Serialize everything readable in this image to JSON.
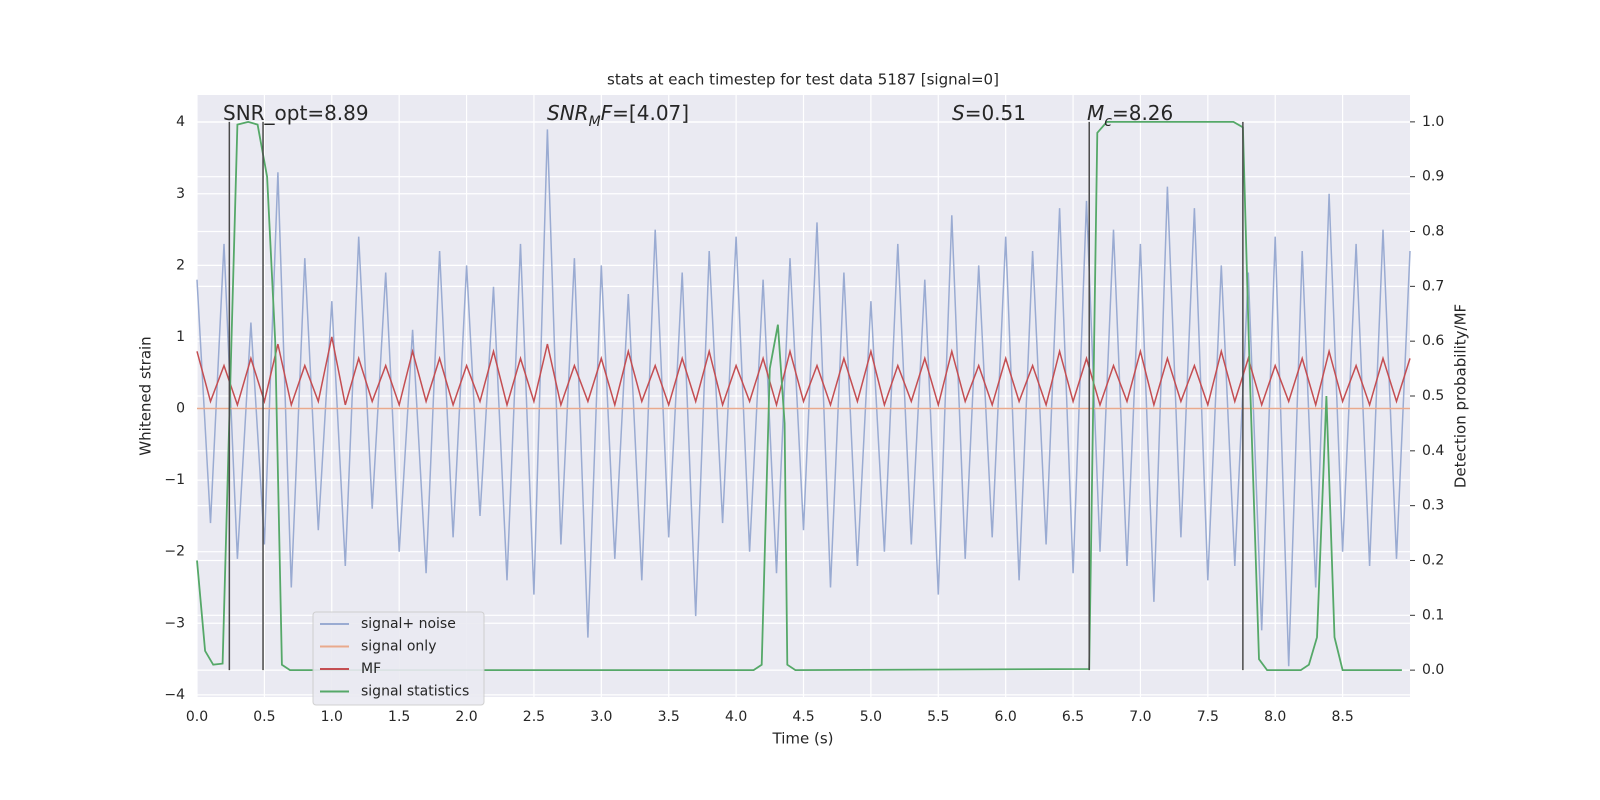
{
  "chart_data": {
    "type": "line",
    "title": "stats at each timestep for test data 5187 [signal=0]",
    "x_label": "Time (s)",
    "y_label": "Whitened strain",
    "y2_label": "Detection probability/MF",
    "xlim": [
      0,
      9.0
    ],
    "ylim": [
      -4.03,
      4.38
    ],
    "y2lim": [
      -0.049,
      1.049
    ],
    "xticks": [
      {
        "value": 0,
        "label": "0.0"
      },
      0.5,
      {
        "value": 1,
        "label": "1.0"
      },
      1.5,
      {
        "value": 2,
        "label": "2.0"
      },
      2.5,
      {
        "value": 3,
        "label": "3.0"
      },
      3.5,
      {
        "value": 4,
        "label": "4.0"
      },
      4.5,
      {
        "value": 5,
        "label": "5.0"
      },
      5.5,
      {
        "value": 6,
        "label": "6.0"
      },
      6.5,
      {
        "value": 7,
        "label": "7.0"
      },
      7.5,
      {
        "value": 8,
        "label": "8.0"
      },
      8.5
    ],
    "yticks": [
      {
        "value": -4,
        "label": "−4"
      },
      {
        "value": -3,
        "label": "−3"
      },
      {
        "value": -2,
        "label": "−2"
      },
      {
        "value": -1,
        "label": "−1"
      },
      0,
      1,
      2,
      3,
      4
    ],
    "y2ticks": [
      {
        "value": 0,
        "label": "0.0"
      },
      0.1,
      0.2,
      0.3,
      0.4,
      0.5,
      0.6,
      0.7,
      0.8,
      0.9,
      {
        "value": 1,
        "label": "1.0"
      }
    ],
    "grid": true,
    "legend_loc": "lower left",
    "x": [
      0,
      0.1,
      0.2,
      0.3,
      0.4,
      0.5,
      0.6,
      0.7,
      0.8,
      0.9,
      1.0,
      1.1,
      1.2,
      1.3,
      1.4,
      1.5,
      1.6,
      1.7,
      1.8,
      1.9,
      2.0,
      2.1,
      2.2,
      2.3,
      2.4,
      2.5,
      2.6,
      2.7,
      2.8,
      2.9,
      3.0,
      3.1,
      3.2,
      3.3,
      3.4,
      3.5,
      3.6,
      3.7,
      3.8,
      3.9,
      4.0,
      4.1,
      4.2,
      4.3,
      4.4,
      4.5,
      4.6,
      4.7,
      4.8,
      4.9,
      5.0,
      5.1,
      5.2,
      5.3,
      5.4,
      5.5,
      5.6,
      5.7,
      5.8,
      5.9,
      6.0,
      6.1,
      6.2,
      6.3,
      6.4,
      6.5,
      6.6,
      6.7,
      6.8,
      6.9,
      7.0,
      7.1,
      7.2,
      7.3,
      7.4,
      7.5,
      7.6,
      7.7,
      7.8,
      7.9,
      8.0,
      8.1,
      8.2,
      8.3,
      8.4,
      8.5,
      8.6,
      8.7,
      8.8,
      8.9,
      9.0
    ],
    "series": [
      {
        "name": "signal+ noise",
        "color": "#9aabd2",
        "values": [
          1.8,
          -1.6,
          2.3,
          -2.1,
          1.2,
          -1.9,
          3.3,
          -2.5,
          2.1,
          -1.7,
          1.5,
          -2.2,
          2.4,
          -1.4,
          1.9,
          -2.0,
          1.1,
          -2.3,
          2.2,
          -1.8,
          2.0,
          -1.5,
          1.7,
          -2.4,
          2.3,
          -2.6,
          3.9,
          -1.9,
          2.1,
          -3.2,
          2.0,
          -2.1,
          1.6,
          -2.4,
          2.5,
          -1.8,
          1.9,
          -2.9,
          2.2,
          -1.6,
          2.4,
          -2.0,
          1.8,
          -2.3,
          2.1,
          -1.7,
          2.6,
          -2.5,
          1.9,
          -2.2,
          1.5,
          -2.0,
          2.3,
          -1.9,
          1.8,
          -2.6,
          2.7,
          -2.1,
          2.0,
          -1.8,
          2.4,
          -2.4,
          2.2,
          -1.9,
          2.8,
          -2.3,
          2.9,
          -2.0,
          2.5,
          -2.2,
          2.3,
          -2.7,
          3.1,
          -1.8,
          2.8,
          -2.4,
          2.0,
          -2.2,
          1.9,
          -3.1,
          2.4,
          -3.6,
          2.2,
          -2.5,
          3.0,
          -2.0,
          2.3,
          -2.2,
          2.5,
          -2.1,
          2.2
        ]
      },
      {
        "name": "signal only",
        "color": "#e9a98c",
        "x": [
          0,
          9.0
        ],
        "values": [
          0,
          0
        ]
      },
      {
        "name": "MF",
        "color": "#c44e52",
        "values": [
          0.8,
          0.1,
          0.6,
          0.05,
          0.7,
          0.1,
          0.9,
          0.05,
          0.6,
          0.1,
          1.0,
          0.05,
          0.7,
          0.1,
          0.6,
          0.05,
          0.8,
          0.1,
          0.7,
          0.05,
          0.6,
          0.1,
          0.8,
          0.05,
          0.7,
          0.1,
          0.9,
          0.05,
          0.6,
          0.1,
          0.7,
          0.05,
          0.8,
          0.1,
          0.6,
          0.05,
          0.7,
          0.1,
          0.8,
          0.05,
          0.6,
          0.1,
          0.7,
          0.05,
          0.8,
          0.1,
          0.6,
          0.05,
          0.7,
          0.1,
          0.8,
          0.05,
          0.6,
          0.1,
          0.7,
          0.05,
          0.8,
          0.1,
          0.6,
          0.05,
          0.7,
          0.1,
          0.6,
          0.05,
          0.8,
          0.1,
          0.7,
          0.05,
          0.6,
          0.1,
          0.8,
          0.05,
          0.7,
          0.1,
          0.6,
          0.05,
          0.8,
          0.1,
          0.7,
          0.05,
          0.6,
          0.1,
          0.7,
          0.05,
          0.8,
          0.1,
          0.6,
          0.05,
          0.7,
          0.1,
          0.7
        ]
      },
      {
        "name": "signal statistics",
        "color": "#55a868",
        "axis": "y2",
        "x": [
          0,
          0.06,
          0.12,
          0.19,
          0.3,
          0.38,
          0.45,
          0.52,
          0.58,
          0.63,
          0.69,
          4.13,
          4.19,
          4.25,
          4.31,
          4.36,
          4.38,
          4.44,
          6.62,
          6.68,
          6.75,
          7.69,
          7.76,
          7.81,
          7.88,
          7.94,
          8.19,
          8.25,
          8.31,
          8.38,
          8.44,
          8.5,
          8.94
        ],
        "values": [
          0.2,
          0.035,
          0.01,
          0.012,
          0.995,
          1.0,
          0.995,
          0.9,
          0.6,
          0.01,
          0,
          0,
          0.01,
          0.55,
          0.63,
          0.45,
          0.01,
          0,
          0.002,
          0.98,
          1.0,
          1.0,
          0.99,
          0.55,
          0.02,
          0,
          0,
          0.01,
          0.06,
          0.5,
          0.06,
          0,
          0
        ]
      }
    ],
    "vlines": [
      0.24,
      0.49,
      6.62,
      7.76
    ],
    "vline_span": [
      0,
      1
    ],
    "vline_color": "#4a4a4a",
    "annotations": [
      {
        "parts": [
          {
            "text": "SNR_opt=8.89"
          }
        ]
      },
      {
        "parts": [
          {
            "text": "SNR",
            "italic": true
          },
          {
            "text": "M",
            "italic": true,
            "sub": true
          },
          {
            "text": "F",
            "italic": true
          },
          {
            "text": "=[4.07]"
          }
        ]
      },
      {
        "parts": [
          {
            "text": "S",
            "italic": true
          },
          {
            "text": "=0.51"
          }
        ]
      },
      {
        "parts": [
          {
            "text": "M",
            "italic": true
          },
          {
            "text": "c",
            "italic": true,
            "sub": true
          },
          {
            "text": "=8.26"
          }
        ]
      }
    ]
  }
}
